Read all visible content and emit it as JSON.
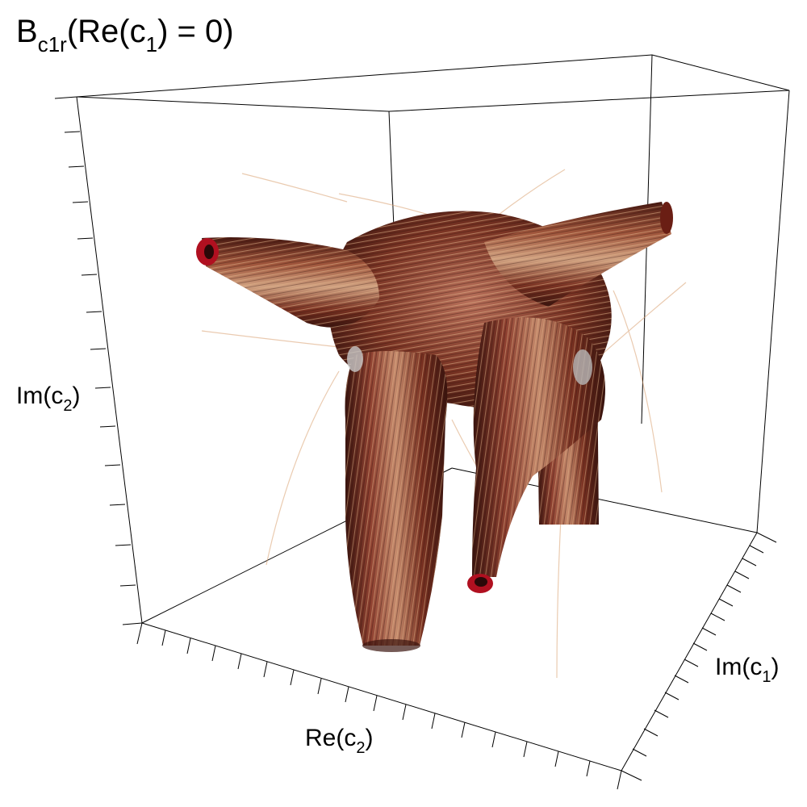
{
  "title": {
    "main": "B",
    "sub": "c1r",
    "rest_open": "(Re(c",
    "rest_sub": "1",
    "rest_close": ") = 0)"
  },
  "axes": {
    "im_c2": {
      "main": "Im(c",
      "sub": "2",
      "close": ")"
    },
    "re_c2": {
      "main": "Re(c",
      "sub": "2",
      "close": ")"
    },
    "im_c1": {
      "main": "Im(c",
      "sub": "1",
      "close": ")"
    }
  },
  "colors": {
    "tube_dark": "#4a1a12",
    "tube_mid": "#8a3a28",
    "tube_light": "#c98a6a",
    "highlight": "#d9b890",
    "tube_end": "#b01020",
    "box_line": "#000000"
  }
}
